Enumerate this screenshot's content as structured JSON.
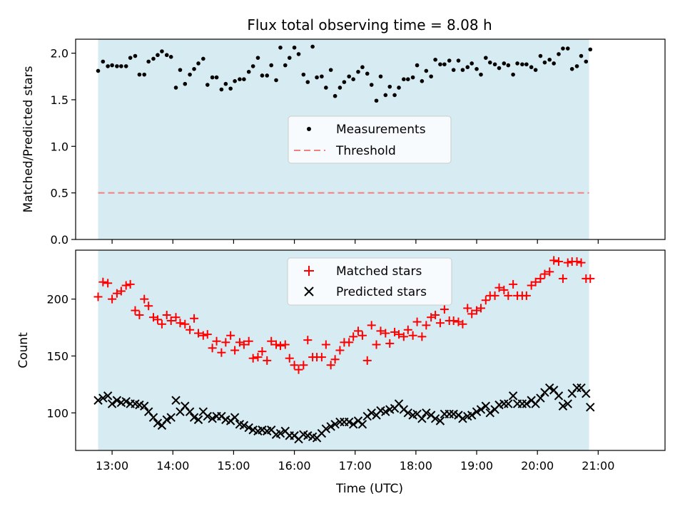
{
  "figure_title": "Flux total observing time = 8.08 h",
  "chart_data": [
    {
      "type": "scatter",
      "panel": "top",
      "ylabel": "Matched/Predicted stars",
      "xlabel": "",
      "ylim": [
        0,
        2.15
      ],
      "yticks": [
        0.0,
        0.5,
        1.0,
        1.5,
        2.0
      ],
      "ytick_labels": [
        "0.0",
        "0.5",
        "1.0",
        "1.5",
        "2.0"
      ],
      "xlim": [
        12.4,
        22.1
      ],
      "shaded_span": [
        12.77,
        20.85
      ],
      "shade_color": "#add8e6",
      "legend": {
        "position": "center",
        "entries": [
          "Measurements",
          "Threshold"
        ]
      },
      "series": [
        {
          "name": "Measurements",
          "color": "#000000",
          "marker": "dot",
          "x": [
            12.77,
            12.85,
            12.93,
            13.0,
            13.08,
            13.15,
            13.23,
            13.3,
            13.38,
            13.45,
            13.53,
            13.6,
            13.68,
            13.75,
            13.82,
            13.9,
            13.97,
            14.05,
            14.12,
            14.2,
            14.28,
            14.35,
            14.42,
            14.5,
            14.57,
            14.65,
            14.72,
            14.8,
            14.87,
            14.95,
            15.02,
            15.1,
            15.17,
            15.25,
            15.32,
            15.4,
            15.47,
            15.55,
            15.62,
            15.7,
            15.77,
            15.85,
            15.92,
            16.0,
            16.07,
            16.15,
            16.22,
            16.3,
            16.37,
            16.45,
            16.52,
            16.6,
            16.67,
            16.75,
            16.82,
            16.9,
            16.97,
            17.05,
            17.12,
            17.2,
            17.27,
            17.35,
            17.42,
            17.5,
            17.57,
            17.65,
            17.72,
            17.8,
            17.87,
            17.95,
            18.02,
            18.1,
            18.17,
            18.25,
            18.32,
            18.4,
            18.47,
            18.55,
            18.62,
            18.7,
            18.77,
            18.85,
            18.92,
            19.0,
            19.07,
            19.15,
            19.22,
            19.3,
            19.37,
            19.45,
            19.52,
            19.6,
            19.67,
            19.75,
            19.82,
            19.9,
            19.97,
            20.05,
            20.12,
            20.2,
            20.27,
            20.35,
            20.42,
            20.5,
            20.57,
            20.65,
            20.72,
            20.8,
            20.87
          ],
          "y": [
            1.81,
            1.91,
            1.86,
            1.87,
            1.86,
            1.86,
            1.86,
            1.95,
            1.97,
            1.77,
            1.77,
            1.91,
            1.94,
            1.98,
            2.02,
            1.98,
            1.96,
            1.63,
            1.82,
            1.67,
            1.77,
            1.83,
            1.89,
            1.94,
            1.66,
            1.74,
            1.74,
            1.61,
            1.67,
            1.62,
            1.7,
            1.72,
            1.72,
            1.8,
            1.86,
            1.95,
            1.76,
            1.76,
            1.87,
            1.71,
            2.06,
            1.87,
            1.95,
            2.06,
            1.99,
            1.77,
            1.69,
            2.07,
            1.74,
            1.75,
            1.63,
            1.82,
            1.54,
            1.63,
            1.69,
            1.75,
            1.72,
            1.8,
            1.85,
            1.78,
            1.66,
            1.49,
            1.75,
            1.55,
            1.64,
            1.55,
            1.63,
            1.72,
            1.72,
            1.74,
            1.87,
            1.7,
            1.81,
            1.75,
            1.93,
            1.88,
            1.88,
            1.92,
            1.82,
            1.92,
            1.82,
            1.85,
            1.89,
            1.83,
            1.77,
            1.95,
            1.9,
            1.88,
            1.84,
            1.89,
            1.87,
            1.77,
            1.89,
            1.88,
            1.88,
            1.85,
            1.82,
            1.97,
            1.9,
            1.93,
            1.89,
            1.99,
            2.05,
            2.05,
            1.83,
            1.86,
            1.97,
            1.91,
            2.04
          ]
        },
        {
          "name": "Threshold",
          "color": "#f08080",
          "style": "dashed",
          "y_constant": 0.5
        }
      ]
    },
    {
      "type": "scatter",
      "panel": "bottom",
      "ylabel": "Count",
      "xlabel": "Time (UTC)",
      "ylim": [
        67,
        243
      ],
      "yticks": [
        100,
        150,
        200
      ],
      "ytick_labels": [
        "100",
        "150",
        "200"
      ],
      "xlim": [
        12.4,
        22.1
      ],
      "xticks": [
        13,
        14,
        15,
        16,
        17,
        18,
        19,
        20,
        21
      ],
      "xtick_labels": [
        "13:00",
        "14:00",
        "15:00",
        "16:00",
        "17:00",
        "18:00",
        "19:00",
        "20:00",
        "21:00"
      ],
      "shaded_span": [
        12.77,
        20.85
      ],
      "shade_color": "#add8e6",
      "legend": {
        "position": "top-center",
        "entries": [
          "Matched stars",
          "Predicted stars"
        ]
      },
      "series": [
        {
          "name": "Matched stars",
          "color": "#ff0000",
          "marker": "plus",
          "x": [
            12.77,
            12.85,
            12.93,
            13.0,
            13.08,
            13.15,
            13.23,
            13.3,
            13.38,
            13.45,
            13.53,
            13.6,
            13.68,
            13.75,
            13.82,
            13.9,
            13.97,
            14.05,
            14.12,
            14.2,
            14.28,
            14.35,
            14.42,
            14.5,
            14.57,
            14.65,
            14.72,
            14.8,
            14.87,
            14.95,
            15.02,
            15.1,
            15.17,
            15.25,
            15.32,
            15.4,
            15.47,
            15.55,
            15.62,
            15.7,
            15.77,
            15.85,
            15.92,
            16.0,
            16.07,
            16.15,
            16.22,
            16.3,
            16.37,
            16.45,
            16.52,
            16.6,
            16.67,
            16.75,
            16.82,
            16.9,
            16.97,
            17.05,
            17.12,
            17.2,
            17.27,
            17.35,
            17.42,
            17.5,
            17.57,
            17.65,
            17.72,
            17.8,
            17.87,
            17.95,
            18.02,
            18.1,
            18.17,
            18.25,
            18.32,
            18.4,
            18.47,
            18.55,
            18.62,
            18.7,
            18.77,
            18.85,
            18.92,
            19.0,
            19.07,
            19.15,
            19.22,
            19.3,
            19.37,
            19.45,
            19.52,
            19.6,
            19.67,
            19.75,
            19.82,
            19.9,
            19.97,
            20.05,
            20.12,
            20.2,
            20.27,
            20.35,
            20.42,
            20.5,
            20.57,
            20.65,
            20.72,
            20.8,
            20.87
          ],
          "y": [
            202,
            215,
            214,
            200,
            205,
            207,
            212,
            213,
            190,
            186,
            200,
            194,
            184,
            182,
            178,
            186,
            181,
            184,
            179,
            178,
            173,
            183,
            170,
            168,
            169,
            157,
            163,
            153,
            162,
            168,
            155,
            162,
            160,
            163,
            148,
            149,
            154,
            146,
            163,
            160,
            159,
            160,
            148,
            142,
            138,
            142,
            164,
            149,
            149,
            149,
            160,
            142,
            147,
            155,
            162,
            162,
            167,
            172,
            168,
            146,
            177,
            160,
            172,
            170,
            161,
            171,
            169,
            167,
            173,
            168,
            180,
            167,
            177,
            184,
            186,
            179,
            191,
            181,
            181,
            180,
            178,
            192,
            187,
            190,
            192,
            199,
            203,
            203,
            210,
            208,
            203,
            213,
            203,
            203,
            203,
            212,
            215,
            218,
            222,
            224,
            234,
            233,
            218,
            232,
            233,
            233,
            232,
            218,
            218
          ],
          "note": ""
        },
        {
          "name": "Predicted stars",
          "color": "#000000",
          "marker": "x",
          "x": [
            12.77,
            12.85,
            12.93,
            13.0,
            13.08,
            13.15,
            13.23,
            13.3,
            13.38,
            13.45,
            13.53,
            13.6,
            13.68,
            13.75,
            13.82,
            13.9,
            13.97,
            14.05,
            14.12,
            14.2,
            14.28,
            14.35,
            14.42,
            14.5,
            14.57,
            14.65,
            14.72,
            14.8,
            14.87,
            14.95,
            15.02,
            15.1,
            15.17,
            15.25,
            15.32,
            15.4,
            15.47,
            15.55,
            15.62,
            15.7,
            15.77,
            15.85,
            15.92,
            16.0,
            16.07,
            16.15,
            16.22,
            16.3,
            16.37,
            16.45,
            16.52,
            16.6,
            16.67,
            16.75,
            16.82,
            16.9,
            16.97,
            17.05,
            17.12,
            17.2,
            17.27,
            17.35,
            17.42,
            17.5,
            17.57,
            17.65,
            17.72,
            17.8,
            17.87,
            17.95,
            18.02,
            18.1,
            18.17,
            18.25,
            18.32,
            18.4,
            18.47,
            18.55,
            18.62,
            18.7,
            18.77,
            18.85,
            18.92,
            19.0,
            19.07,
            19.15,
            19.22,
            19.3,
            19.37,
            19.45,
            19.52,
            19.6,
            19.67,
            19.75,
            19.82,
            19.9,
            19.97,
            20.05,
            20.12,
            20.2,
            20.27,
            20.35,
            20.42,
            20.5,
            20.57,
            20.65,
            20.72,
            20.8,
            20.87
          ],
          "y": [
            111,
            113,
            115,
            108,
            111,
            109,
            110,
            108,
            108,
            107,
            106,
            101,
            96,
            91,
            89,
            94,
            96,
            111,
            101,
            106,
            101,
            96,
            94,
            101,
            97,
            95,
            97,
            97,
            94,
            93,
            96,
            90,
            89,
            87,
            85,
            84,
            85,
            84,
            85,
            81,
            82,
            84,
            80,
            80,
            77,
            81,
            80,
            79,
            78,
            82,
            86,
            88,
            90,
            92,
            92,
            92,
            90,
            93,
            90,
            97,
            100,
            98,
            102,
            101,
            103,
            104,
            108,
            103,
            100,
            98,
            99,
            95,
            100,
            98,
            95,
            93,
            99,
            99,
            99,
            98,
            95,
            97,
            98,
            101,
            103,
            106,
            100,
            103,
            107,
            108,
            108,
            115,
            108,
            108,
            108,
            111,
            108,
            113,
            118,
            122,
            120,
            115,
            106,
            108,
            117,
            122,
            122,
            117,
            105
          ]
        }
      ]
    }
  ]
}
